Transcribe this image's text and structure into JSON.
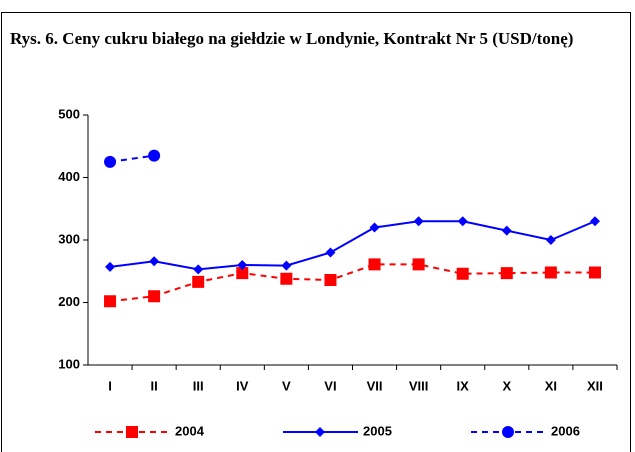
{
  "chart_data": {
    "type": "line",
    "title": "Rys. 6. Ceny cukru białego na giełdzie w Londynie, Kontrakt Nr 5 (USD/tonę)",
    "categories": [
      "I",
      "II",
      "III",
      "IV",
      "V",
      "VI",
      "VII",
      "VIII",
      "IX",
      "X",
      "XI",
      "XII"
    ],
    "series": [
      {
        "name": "2004",
        "color": "#ff0000",
        "line_style": "dashed",
        "marker": "square",
        "values": [
          202,
          210,
          233,
          247,
          238,
          236,
          261,
          261,
          246,
          247,
          248,
          248
        ]
      },
      {
        "name": "2005",
        "color": "#0000ff",
        "line_style": "solid",
        "marker": "diamond",
        "values": [
          257,
          266,
          253,
          260,
          259,
          280,
          320,
          330,
          330,
          315,
          300,
          330
        ]
      },
      {
        "name": "2006",
        "color": "#0000ff",
        "line_style": "dashed",
        "marker": "circle",
        "values": [
          425,
          435,
          null,
          null,
          null,
          null,
          null,
          null,
          null,
          null,
          null,
          null
        ]
      }
    ],
    "ylim": [
      100,
      500
    ],
    "yticks": [
      100,
      200,
      300,
      400,
      500
    ],
    "grid": false,
    "legend": "bottom"
  }
}
